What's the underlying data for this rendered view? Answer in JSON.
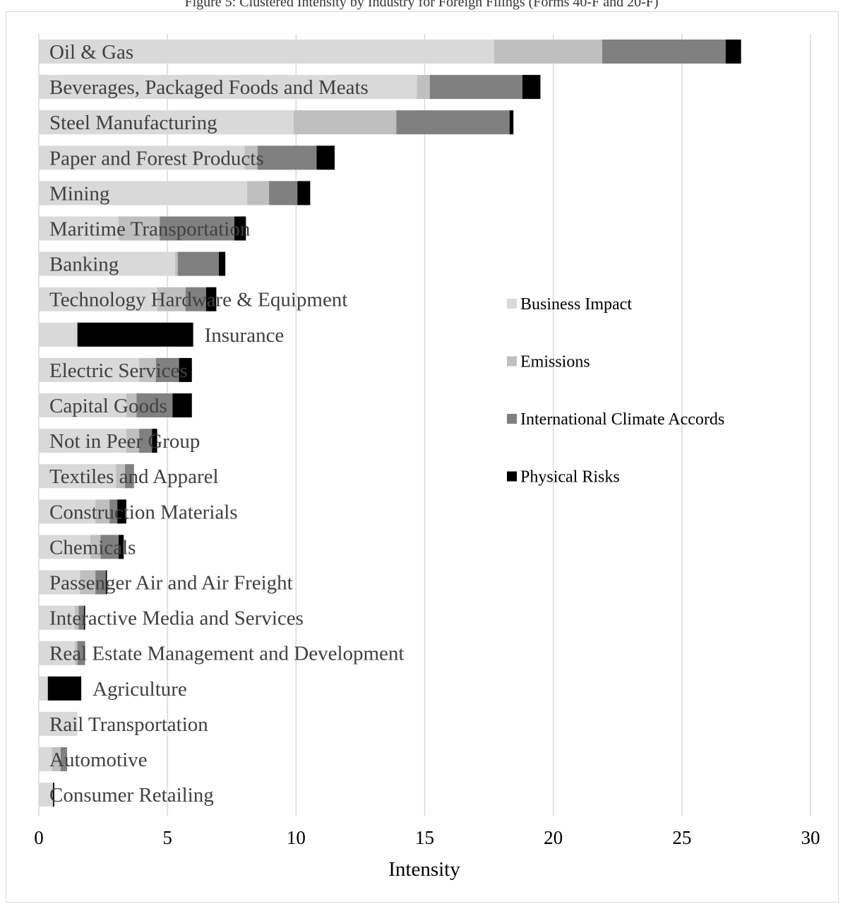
{
  "title": "Figure 5: Clustered Intensity by Industry for Foreign Filings (Forms 40-F and 20-F)",
  "chart_data": {
    "type": "bar",
    "orientation": "horizontal",
    "stacked": true,
    "xlabel": "Intensity",
    "ylabel": "",
    "xlim": [
      0,
      30
    ],
    "xticks": [
      "0",
      "5",
      "10",
      "15",
      "20",
      "25",
      "30"
    ],
    "grid": "vertical",
    "legend_position": "right",
    "categories": [
      "Oil & Gas",
      "Beverages, Packaged Foods and Meats",
      "Steel Manufacturing",
      "Paper and Forest Products",
      "Mining",
      "Maritime Transportation",
      "Banking",
      "Technology Hardware & Equipment",
      "Insurance",
      "Electric Services",
      "Capital Goods",
      "Not in Peer Group",
      "Textiles and Apparel",
      "Construction Materials",
      "Chemicals",
      "Passenger Air and Air Freight",
      "Interactive Media and Services",
      "Real Estate Management and Development",
      "Agriculture",
      "Rail Transportation",
      "Automotive",
      "Consumer Retailing"
    ],
    "series": [
      {
        "name": "Business Impact",
        "color": "#d9d9d9",
        "values": [
          17.7,
          14.7,
          9.9,
          8.0,
          8.1,
          3.1,
          5.3,
          4.6,
          1.5,
          3.9,
          3.4,
          3.4,
          3.0,
          2.2,
          2.0,
          1.6,
          1.4,
          1.4,
          0.35,
          1.5,
          0.5,
          0.55
        ]
      },
      {
        "name": "Emissions",
        "color": "#bfbfbf",
        "values": [
          4.2,
          0.5,
          4.0,
          0.5,
          0.85,
          1.6,
          0.1,
          1.1,
          0.0,
          0.65,
          0.4,
          0.5,
          0.35,
          0.55,
          0.4,
          0.6,
          0.15,
          0.1,
          0.0,
          0.0,
          0.35,
          0.0
        ]
      },
      {
        "name": "International Climate Accords",
        "color": "#808080",
        "values": [
          4.8,
          3.6,
          4.4,
          2.3,
          1.1,
          2.9,
          1.6,
          0.8,
          0.0,
          0.9,
          1.4,
          0.5,
          0.35,
          0.3,
          0.7,
          0.4,
          0.2,
          0.3,
          0.0,
          0.0,
          0.25,
          0.0
        ]
      },
      {
        "name": "Physical Risks",
        "color": "#000000",
        "values": [
          0.6,
          0.7,
          0.15,
          0.7,
          0.5,
          0.45,
          0.25,
          0.4,
          4.5,
          0.5,
          0.75,
          0.2,
          0.0,
          0.35,
          0.2,
          0.05,
          0.05,
          0.0,
          1.3,
          0.0,
          0.0,
          0.05
        ]
      }
    ]
  }
}
